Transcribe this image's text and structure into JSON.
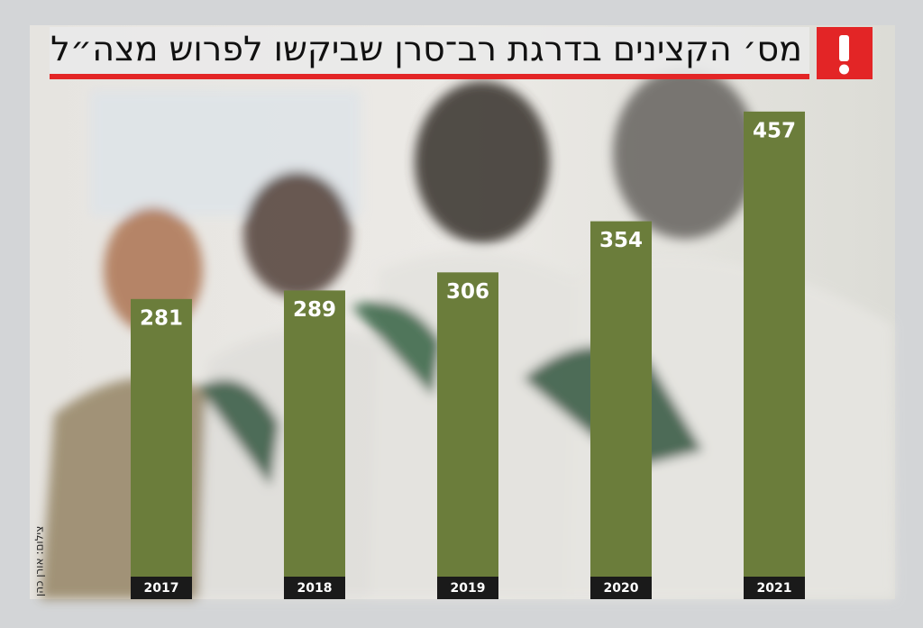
{
  "chart_data": {
    "type": "bar",
    "title": "מס׳ הקצינים בדרגת רב־סרן שביקשו לפרוש מצה״ל",
    "credit": "צילום: אורן כהן",
    "categories": [
      "2017",
      "2018",
      "2019",
      "2020",
      "2021"
    ],
    "values": [
      281,
      289,
      306,
      354,
      457
    ],
    "color": "#6b7d3b"
  }
}
